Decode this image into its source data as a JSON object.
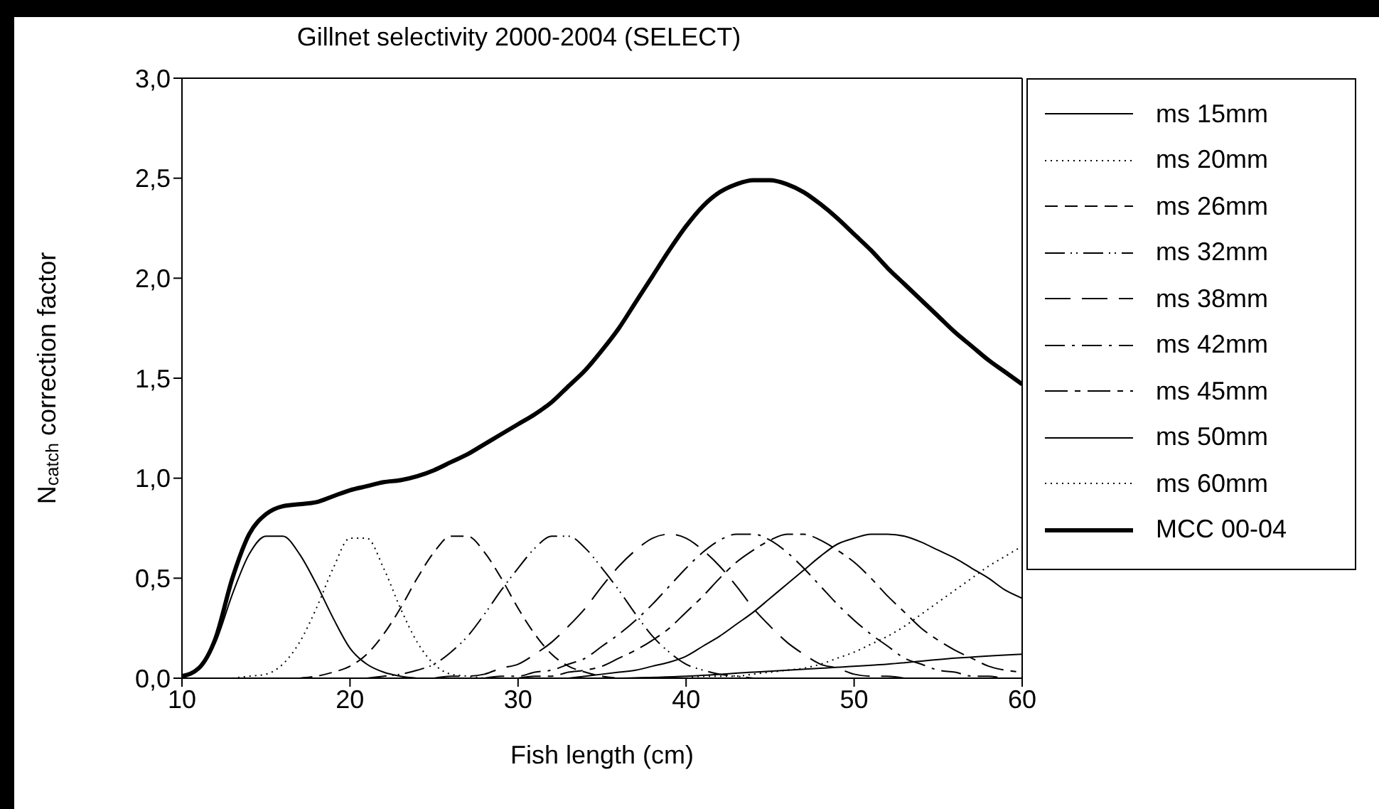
{
  "chart_data": {
    "type": "line",
    "title": "Gillnet selectivity 2000-2004 (SELECT)",
    "xlabel": "Fish length (cm)",
    "ylabel": "N$_{catch}$ correction factor",
    "xlim": [
      10,
      60
    ],
    "xticks": [
      10,
      20,
      30,
      40,
      50,
      60
    ],
    "ylim": [
      0,
      3
    ],
    "yticks": [
      {
        "value": 0,
        "label": "0,0"
      },
      {
        "value": 0.5,
        "label": "0,5"
      },
      {
        "value": 1,
        "label": "1,0"
      },
      {
        "value": 1.5,
        "label": "1,5"
      },
      {
        "value": 2,
        "label": "2,0"
      },
      {
        "value": 2.5,
        "label": "2,5"
      },
      {
        "value": 3,
        "label": "3,0"
      }
    ],
    "grid": false,
    "legend": "right",
    "marker": "none",
    "series": [
      {
        "name": "ms 15mm",
        "color": "#000000",
        "line_style": "solid",
        "x": [
          10,
          11,
          12,
          13,
          14,
          15,
          16,
          17,
          18,
          19,
          20,
          21,
          22,
          23,
          24
        ],
        "values": [
          0.01,
          0.05,
          0.18,
          0.42,
          0.62,
          0.71,
          0.71,
          0.62,
          0.47,
          0.3,
          0.15,
          0.07,
          0.03,
          0.01,
          0
        ]
      },
      {
        "name": "ms 20mm",
        "color": "#000000",
        "line_style": "dotted",
        "x": [
          13,
          14,
          15,
          16,
          17,
          18,
          19,
          20,
          21,
          22,
          23,
          24,
          25,
          26,
          27,
          28
        ],
        "values": [
          0,
          0.01,
          0.02,
          0.07,
          0.18,
          0.35,
          0.55,
          0.7,
          0.7,
          0.55,
          0.35,
          0.18,
          0.07,
          0.02,
          0.01,
          0
        ]
      },
      {
        "name": "ms 26mm",
        "color": "#000000",
        "line_style": "dashed",
        "x": [
          17,
          18,
          19,
          20,
          21,
          22,
          23,
          24,
          25,
          26,
          27,
          28,
          29,
          30,
          31,
          32,
          33,
          34,
          35,
          36
        ],
        "values": [
          0,
          0.01,
          0.03,
          0.06,
          0.12,
          0.22,
          0.35,
          0.5,
          0.63,
          0.71,
          0.71,
          0.63,
          0.5,
          0.35,
          0.22,
          0.12,
          0.06,
          0.03,
          0.01,
          0
        ]
      },
      {
        "name": "ms 32mm",
        "color": "#000000",
        "line_style": "dashdotdot",
        "x": [
          21,
          22,
          23,
          24,
          25,
          26,
          27,
          28,
          29,
          30,
          31,
          32,
          33,
          34,
          35,
          36,
          37,
          38,
          39,
          40,
          41,
          42,
          43,
          44
        ],
        "values": [
          0,
          0.01,
          0.02,
          0.04,
          0.07,
          0.13,
          0.21,
          0.32,
          0.44,
          0.55,
          0.65,
          0.71,
          0.71,
          0.65,
          0.55,
          0.44,
          0.32,
          0.21,
          0.13,
          0.07,
          0.04,
          0.02,
          0.01,
          0
        ]
      },
      {
        "name": "ms 38mm",
        "color": "#000000",
        "line_style": "longdash",
        "x": [
          25,
          26,
          27,
          28,
          29,
          30,
          31,
          32,
          33,
          34,
          35,
          36,
          37,
          38,
          39,
          40,
          41,
          42,
          43,
          44,
          45,
          46,
          47,
          48,
          49,
          50,
          51,
          52,
          53
        ],
        "values": [
          0,
          0.01,
          0.01,
          0.02,
          0.05,
          0.07,
          0.12,
          0.18,
          0.26,
          0.35,
          0.46,
          0.56,
          0.64,
          0.7,
          0.72,
          0.7,
          0.64,
          0.56,
          0.46,
          0.35,
          0.26,
          0.18,
          0.12,
          0.07,
          0.05,
          0.02,
          0.01,
          0.01,
          0
        ]
      },
      {
        "name": "ms 42mm",
        "color": "#000000",
        "line_style": "dashdot",
        "x": [
          28,
          29,
          30,
          31,
          32,
          33,
          34,
          35,
          36,
          37,
          38,
          39,
          40,
          41,
          42,
          43,
          44,
          45,
          46,
          47,
          48,
          49,
          50,
          51,
          52,
          53,
          54,
          55,
          56,
          57,
          58,
          59,
          60
        ],
        "values": [
          0,
          0.01,
          0.01,
          0.03,
          0.04,
          0.07,
          0.1,
          0.16,
          0.22,
          0.29,
          0.37,
          0.46,
          0.55,
          0.63,
          0.69,
          0.72,
          0.72,
          0.69,
          0.63,
          0.55,
          0.46,
          0.37,
          0.29,
          0.22,
          0.16,
          0.1,
          0.07,
          0.04,
          0.03,
          0.01,
          0.01,
          0,
          0
        ]
      },
      {
        "name": "ms 45mm",
        "color": "#000000",
        "line_style": "dashshortdash",
        "x": [
          30,
          31,
          32,
          33,
          34,
          35,
          36,
          37,
          38,
          39,
          40,
          41,
          42,
          43,
          44,
          45,
          46,
          47,
          48,
          49,
          50,
          51,
          52,
          53,
          54,
          55,
          56,
          57,
          58,
          59,
          60
        ],
        "values": [
          0,
          0.01,
          0.01,
          0.03,
          0.04,
          0.06,
          0.1,
          0.14,
          0.19,
          0.25,
          0.33,
          0.41,
          0.5,
          0.58,
          0.64,
          0.69,
          0.72,
          0.72,
          0.69,
          0.64,
          0.58,
          0.5,
          0.41,
          0.33,
          0.25,
          0.19,
          0.14,
          0.1,
          0.06,
          0.04,
          0.03
        ]
      },
      {
        "name": "ms 50mm",
        "color": "#000000",
        "line_style": "solid",
        "x": [
          33,
          34,
          35,
          36,
          37,
          38,
          39,
          40,
          41,
          42,
          43,
          44,
          45,
          46,
          47,
          48,
          49,
          50,
          51,
          52,
          53,
          54,
          55,
          56,
          57,
          58,
          59,
          60
        ],
        "values": [
          0,
          0.01,
          0.02,
          0.03,
          0.04,
          0.06,
          0.08,
          0.11,
          0.16,
          0.21,
          0.27,
          0.33,
          0.4,
          0.47,
          0.54,
          0.61,
          0.67,
          0.7,
          0.72,
          0.72,
          0.71,
          0.68,
          0.64,
          0.6,
          0.55,
          0.5,
          0.44,
          0.4
        ]
      },
      {
        "name": "ms 60mm",
        "color": "#000000",
        "line_style": "dotted",
        "x": [
          40,
          41,
          42,
          43,
          44,
          45,
          46,
          47,
          48,
          49,
          50,
          51,
          52,
          53,
          54,
          55,
          56,
          57,
          58,
          59,
          60
        ],
        "values": [
          0,
          0.01,
          0.01,
          0.01,
          0.02,
          0.03,
          0.04,
          0.05,
          0.07,
          0.1,
          0.13,
          0.17,
          0.21,
          0.26,
          0.32,
          0.38,
          0.44,
          0.5,
          0.56,
          0.61,
          0.66
        ]
      },
      {
        "color": "#000000",
        "line_style": "solid",
        "x": [
          36,
          40,
          44,
          48,
          52,
          56,
          60
        ],
        "values": [
          0,
          0.01,
          0.03,
          0.05,
          0.07,
          0.1,
          0.12
        ]
      },
      {
        "name": "MCC 00-04",
        "color": "#000000",
        "line_style": "solid",
        "x": [
          10,
          11,
          12,
          13,
          14,
          15,
          16,
          17,
          18,
          19,
          20,
          21,
          22,
          23,
          24,
          25,
          26,
          27,
          28,
          29,
          30,
          31,
          32,
          33,
          34,
          35,
          36,
          37,
          38,
          39,
          40,
          41,
          42,
          43,
          44,
          45,
          46,
          47,
          48,
          49,
          50,
          51,
          52,
          53,
          54,
          55,
          56,
          57,
          58,
          59,
          60
        ],
        "values": [
          0.01,
          0.05,
          0.2,
          0.5,
          0.72,
          0.82,
          0.86,
          0.87,
          0.88,
          0.91,
          0.94,
          0.96,
          0.98,
          0.99,
          1.01,
          1.04,
          1.08,
          1.12,
          1.17,
          1.22,
          1.27,
          1.32,
          1.38,
          1.46,
          1.54,
          1.64,
          1.75,
          1.88,
          2.01,
          2.14,
          2.26,
          2.36,
          2.43,
          2.47,
          2.49,
          2.49,
          2.47,
          2.43,
          2.37,
          2.3,
          2.22,
          2.14,
          2.05,
          1.97,
          1.89,
          1.81,
          1.73,
          1.66,
          1.59,
          1.53,
          1.47
        ]
      }
    ]
  }
}
